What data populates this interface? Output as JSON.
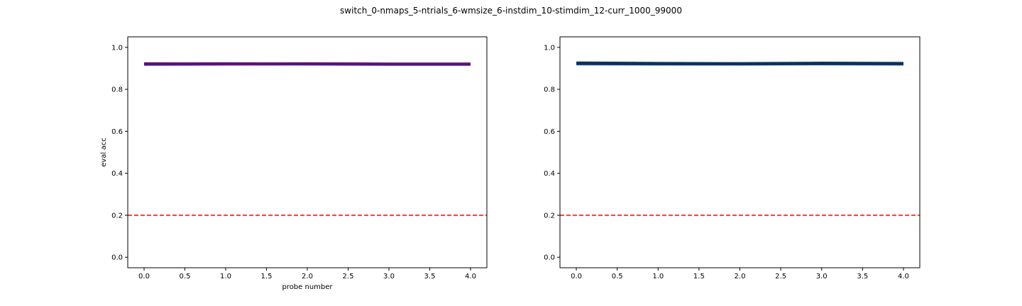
{
  "figure": {
    "suptitle": "switch_0-nmaps_5-ntrials_6-wmsize_6-instdim_10-stimdim_12-curr_1000_99000"
  },
  "chart_data": [
    {
      "type": "line",
      "title": "",
      "xlabel": "probe number",
      "ylabel": "eval acc",
      "xlim": [
        -0.2,
        4.2
      ],
      "ylim": [
        -0.05,
        1.05
      ],
      "xticks": [
        0.0,
        0.5,
        1.0,
        1.5,
        2.0,
        2.5,
        3.0,
        3.5,
        4.0
      ],
      "xtick_labels": [
        "0.0",
        "0.5",
        "1.0",
        "1.5",
        "2.0",
        "2.5",
        "3.0",
        "3.5",
        "4.0"
      ],
      "yticks": [
        0.0,
        0.2,
        0.4,
        0.6,
        0.8,
        1.0
      ],
      "ytick_labels": [
        "0.0",
        "0.2",
        "0.4",
        "0.6",
        "0.8",
        "1.0"
      ],
      "grid": false,
      "x": [
        0,
        1,
        2,
        3,
        4
      ],
      "series": [
        {
          "color": "#3a0a8c",
          "values": [
            0.921,
            0.922,
            0.921,
            0.92,
            0.92
          ]
        },
        {
          "color": "#1a3fb0",
          "values": [
            0.919,
            0.92,
            0.92,
            0.919,
            0.919
          ]
        },
        {
          "color": "#6a0a6e",
          "values": [
            0.922,
            0.921,
            0.922,
            0.921,
            0.921
          ]
        }
      ],
      "reference_line": {
        "y": 0.2,
        "color": "#ff0000",
        "style": "dashed"
      }
    },
    {
      "type": "line",
      "title": "",
      "xlabel": "",
      "ylabel": "",
      "xlim": [
        -0.2,
        4.2
      ],
      "ylim": [
        -0.05,
        1.05
      ],
      "xticks": [
        0.0,
        0.5,
        1.0,
        1.5,
        2.0,
        2.5,
        3.0,
        3.5,
        4.0
      ],
      "xtick_labels": [
        "0.0",
        "0.5",
        "1.0",
        "1.5",
        "2.0",
        "2.5",
        "3.0",
        "3.5",
        "4.0"
      ],
      "yticks": [
        0.0,
        0.2,
        0.4,
        0.6,
        0.8,
        1.0
      ],
      "ytick_labels": [
        "0.0",
        "0.2",
        "0.4",
        "0.6",
        "0.8",
        "1.0"
      ],
      "grid": false,
      "x": [
        0,
        1,
        2,
        3,
        4
      ],
      "series": [
        {
          "color": "#0b3a66",
          "values": [
            0.926,
            0.924,
            0.923,
            0.925,
            0.924
          ]
        },
        {
          "color": "#114a80",
          "values": [
            0.921,
            0.92,
            0.92,
            0.921,
            0.92
          ]
        },
        {
          "color": "#0a2f55",
          "values": [
            0.924,
            0.922,
            0.921,
            0.923,
            0.922
          ]
        }
      ],
      "reference_line": {
        "y": 0.2,
        "color": "#ff0000",
        "style": "dashed"
      }
    }
  ]
}
